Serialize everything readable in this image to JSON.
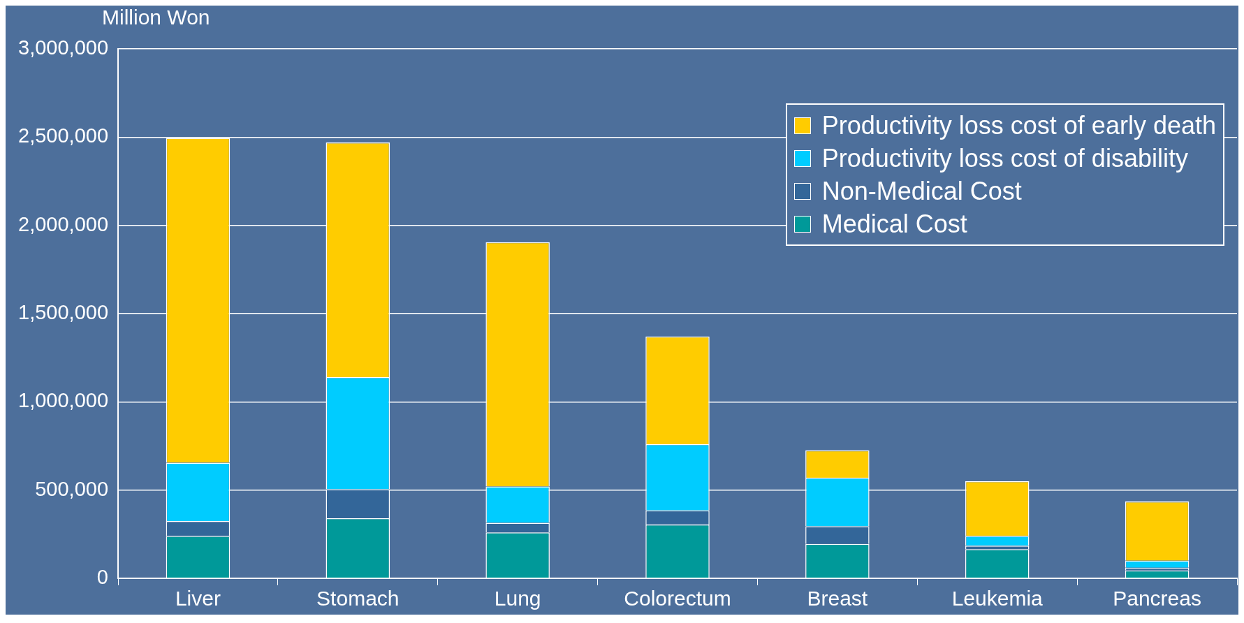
{
  "chart_data": {
    "type": "bar",
    "stacked": true,
    "ylabel": "Million Won",
    "categories": [
      "Liver",
      "Stomach",
      "Lung",
      "Colorectum",
      "Breast",
      "Leukemia",
      "Pancreas"
    ],
    "series": [
      {
        "name": "Medical Cost",
        "color": "#009999",
        "values": [
          240000,
          340000,
          260000,
          305000,
          195000,
          165000,
          45000
        ]
      },
      {
        "name": "Non-Medical Cost",
        "color": "#336699",
        "values": [
          85000,
          165000,
          55000,
          80000,
          100000,
          20000,
          15000
        ]
      },
      {
        "name": "Productivity loss cost of disability",
        "color": "#00ccff",
        "values": [
          330000,
          635000,
          205000,
          375000,
          275000,
          55000,
          40000
        ]
      },
      {
        "name": "Productivity loss cost of early death",
        "color": "#ffcc00",
        "values": [
          1840000,
          1330000,
          1385000,
          610000,
          155000,
          310000,
          335000
        ]
      }
    ],
    "ylim": [
      0,
      3000000
    ],
    "yticks": [
      0,
      {
        "value": 500000,
        "label": "500,000"
      },
      {
        "value": 1000000,
        "label": "1,000,000"
      },
      {
        "value": 1500000,
        "label": "1,500,000"
      },
      {
        "value": 2000000,
        "label": "2,000,000"
      },
      {
        "value": 2500000,
        "label": "2,500,000"
      },
      {
        "value": 3000000,
        "label": "3,000,000"
      }
    ],
    "grid": "y",
    "legend": "top right"
  }
}
